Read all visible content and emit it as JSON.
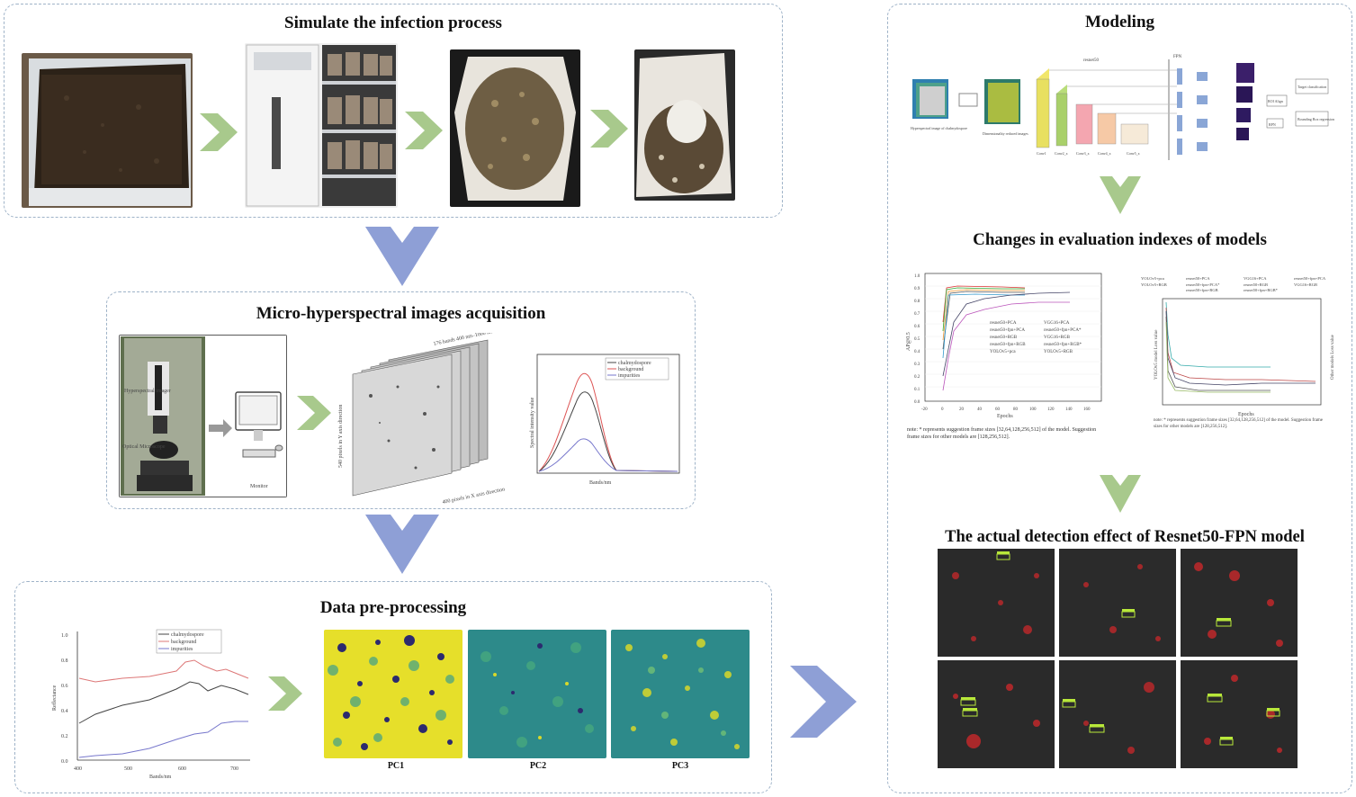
{
  "stage1": {
    "title": "Simulate the infection process"
  },
  "stage2": {
    "title": "Micro-hyperspectral images acquisition",
    "setup_labels": [
      "Hyperspectral imager",
      "Optical Microscope",
      "Monitor"
    ],
    "cube_labels": {
      "top": "176 bands 400 nm–1000 nm",
      "left": "540 pixels in Y axis direction",
      "bottom": "400 pixels in X axis direction"
    },
    "spectrum_legend": [
      "chalmydospore",
      "background",
      "impurities"
    ],
    "spectrum_xlabel": "Bands/nm",
    "spectrum_ylabel": "Spectral intensity value"
  },
  "stage3": {
    "title": "Data pre-processing",
    "legend": [
      "chalmydospore",
      "background",
      "impurities"
    ],
    "xlabel": "Bands/nm",
    "ylabel": "Reflectance",
    "yticks": [
      "1.0",
      "0.8",
      "0.6",
      "0.4",
      "0.2",
      "0.0"
    ],
    "xticks": [
      "400",
      "500",
      "600",
      "700"
    ],
    "pc_labels": [
      "PC1",
      "PC2",
      "PC3"
    ]
  },
  "stage4": {
    "title": "Modeling",
    "texts": [
      "resnet50",
      "FPN",
      "Conv1",
      "Conv2_x",
      "Conv3_x",
      "Conv4_x",
      "Conv5_x",
      "Target classification",
      "Bounding Box regression",
      "RPN",
      "ROI Align",
      "Hyperspectral image of chalmydospore",
      "Dimensionality reduced images"
    ]
  },
  "stage5": {
    "title": "Changes in evaluation indexes of models",
    "left_ylabel": "AP@0.5",
    "left_xlabel": "Epochs",
    "left_yticks": [
      "1.0",
      "0.9",
      "0.8",
      "0.7",
      "0.6",
      "0.5",
      "0.4",
      "0.3",
      "0.2",
      "0.1",
      "0.0"
    ],
    "left_xticks": [
      "-20",
      "0",
      "20",
      "40",
      "60",
      "80",
      "100",
      "120",
      "140",
      "160"
    ],
    "left_legend": [
      "resnet50+PCA",
      "VGG16+PCA",
      "resnet50+fpn+PCA",
      "resnet50+fpn+PCA*",
      "resnet50+RGB",
      "VGG16+RGB",
      "resnet50+fpn+RGB",
      "resnet50+fpn+RGB*",
      "YOLOv5+pca",
      "YOLOv5+RGB"
    ],
    "left_note": "note: * represents suggestion frame sizes [32,64,128,256,512] of the model. Suggestion frame sizes for other models are [128,256,512].",
    "right_legend": [
      "YOLOv5+pca",
      "YOLOv5+RGB",
      "resnet50+PCA",
      "resnet50+fpn+PCA*",
      "resnet50+fpn+RGB",
      "VGG16+PCA",
      "resnet50+RGB",
      "resnet50+fpn+RGB*",
      "resnet50+fpn+PCA",
      "VGG16+RGB"
    ],
    "right_xlabel": "Epochs",
    "right_ylabel_left": "YOLOv5 model Loss value",
    "right_ylabel_right": "Other models Loss value",
    "right_note": "note: * represents suggestion frame sizes [32,64,128,256,512] of the model. Suggestion frame sizes for other models are [128,256,512]."
  },
  "stage6": {
    "title": "The actual detection effect of Resnet50-FPN model"
  },
  "colors": {
    "border": "#9fb3c8",
    "chevron_green": "#a8c98c",
    "chevron_blue": "#8e9fd6",
    "pc_yellow": "#e6df2a",
    "pc_teal": "#2d8a8a",
    "detect_bg": "#2a2a2a",
    "detect_red": "#c0282a",
    "box_green": "#b8e83a"
  }
}
